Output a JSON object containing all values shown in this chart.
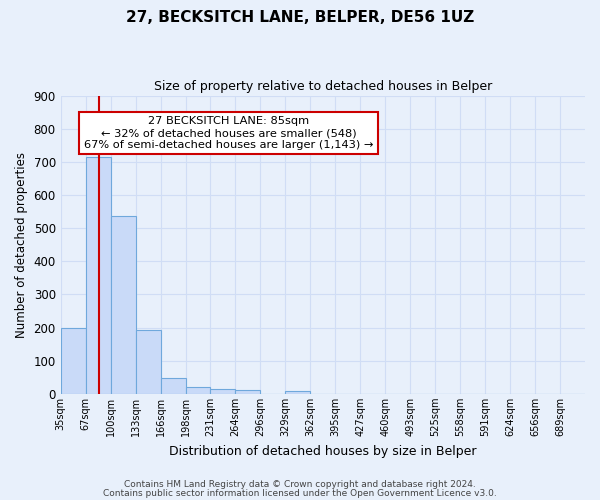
{
  "title": "27, BECKSITCH LANE, BELPER, DE56 1UZ",
  "subtitle": "Size of property relative to detached houses in Belper",
  "xlabel": "Distribution of detached houses by size in Belper",
  "ylabel": "Number of detached properties",
  "footnote1": "Contains HM Land Registry data © Crown copyright and database right 2024.",
  "footnote2": "Contains public sector information licensed under the Open Government Licence v3.0.",
  "bin_labels": [
    "35sqm",
    "67sqm",
    "100sqm",
    "133sqm",
    "166sqm",
    "198sqm",
    "231sqm",
    "264sqm",
    "296sqm",
    "329sqm",
    "362sqm",
    "395sqm",
    "427sqm",
    "460sqm",
    "493sqm",
    "525sqm",
    "558sqm",
    "591sqm",
    "624sqm",
    "656sqm",
    "689sqm"
  ],
  "bar_values": [
    200,
    715,
    537,
    193,
    47,
    20,
    14,
    11,
    0,
    10,
    0,
    0,
    0,
    0,
    0,
    0,
    0,
    0,
    0,
    0,
    0
  ],
  "bar_color": "#c9daf8",
  "bar_edge_color": "#6fa8dc",
  "background_color": "#e8f0fb",
  "grid_color": "#d0ddf5",
  "vline_x_index": 1.52,
  "vline_color": "#cc0000",
  "ylim": [
    0,
    900
  ],
  "yticks": [
    0,
    100,
    200,
    300,
    400,
    500,
    600,
    700,
    800,
    900
  ],
  "annotation_title": "27 BECKSITCH LANE: 85sqm",
  "annotation_line1": "← 32% of detached houses are smaller (548)",
  "annotation_line2": "67% of semi-detached houses are larger (1,143) →",
  "annotation_box_color": "#ffffff",
  "annotation_box_edge": "#cc0000",
  "bin_width": 1,
  "n_bins": 21
}
